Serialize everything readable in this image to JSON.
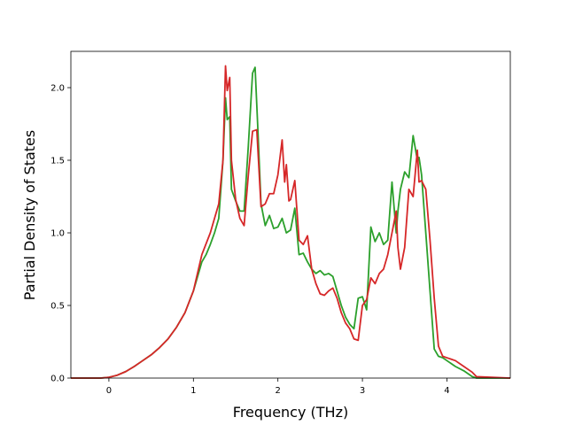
{
  "chart_data": {
    "type": "line",
    "title": "",
    "xlabel": "Frequency (THz)",
    "ylabel": "Partial Density of States",
    "xlim": [
      -0.45,
      4.75
    ],
    "ylim": [
      0,
      2.25
    ],
    "xticks": [
      0,
      1,
      2,
      3,
      4
    ],
    "yticks": [
      0.0,
      0.5,
      1.0,
      1.5,
      2.0
    ],
    "xtick_labels": [
      "0",
      "1",
      "2",
      "3",
      "4"
    ],
    "ytick_labels": [
      "0.0",
      "0.5",
      "1.0",
      "1.5",
      "2.0"
    ],
    "grid": false,
    "legend": "none",
    "series": [
      {
        "color": "#2ca02c",
        "x": [
          -0.45,
          -0.1,
          0.0,
          0.1,
          0.2,
          0.3,
          0.4,
          0.5,
          0.6,
          0.7,
          0.8,
          0.9,
          1.0,
          1.1,
          1.15,
          1.2,
          1.25,
          1.3,
          1.35,
          1.38,
          1.4,
          1.43,
          1.45,
          1.5,
          1.55,
          1.6,
          1.65,
          1.7,
          1.73,
          1.76,
          1.8,
          1.85,
          1.9,
          1.95,
          2.0,
          2.05,
          2.1,
          2.15,
          2.2,
          2.25,
          2.3,
          2.35,
          2.4,
          2.45,
          2.5,
          2.55,
          2.6,
          2.65,
          2.7,
          2.75,
          2.8,
          2.85,
          2.9,
          2.95,
          3.0,
          3.05,
          3.1,
          3.15,
          3.2,
          3.25,
          3.3,
          3.35,
          3.4,
          3.42,
          3.45,
          3.5,
          3.55,
          3.6,
          3.65,
          3.67,
          3.7,
          3.75,
          3.8,
          3.85,
          3.9,
          3.95,
          4.0,
          4.1,
          4.2,
          4.3,
          4.35,
          4.75
        ],
        "y": [
          0.0,
          0.0,
          0.005,
          0.02,
          0.045,
          0.08,
          0.12,
          0.16,
          0.21,
          0.27,
          0.35,
          0.45,
          0.6,
          0.8,
          0.85,
          0.92,
          1.0,
          1.1,
          1.5,
          1.93,
          1.78,
          1.8,
          1.3,
          1.22,
          1.15,
          1.15,
          1.6,
          2.1,
          2.14,
          1.75,
          1.2,
          1.05,
          1.12,
          1.03,
          1.04,
          1.1,
          1.0,
          1.02,
          1.17,
          0.85,
          0.86,
          0.8,
          0.75,
          0.72,
          0.74,
          0.71,
          0.72,
          0.7,
          0.6,
          0.5,
          0.42,
          0.37,
          0.34,
          0.55,
          0.56,
          0.47,
          1.04,
          0.94,
          1.0,
          0.92,
          0.95,
          1.35,
          1.0,
          1.15,
          1.3,
          1.42,
          1.38,
          1.67,
          1.5,
          1.52,
          1.4,
          1.0,
          0.6,
          0.2,
          0.15,
          0.14,
          0.12,
          0.08,
          0.05,
          0.01,
          0.0,
          0.0
        ]
      },
      {
        "color": "#d62728",
        "x": [
          -0.45,
          -0.1,
          0.0,
          0.1,
          0.2,
          0.3,
          0.4,
          0.5,
          0.6,
          0.7,
          0.8,
          0.9,
          1.0,
          1.1,
          1.2,
          1.3,
          1.35,
          1.38,
          1.4,
          1.43,
          1.45,
          1.5,
          1.55,
          1.6,
          1.65,
          1.7,
          1.75,
          1.8,
          1.85,
          1.9,
          1.95,
          2.0,
          2.05,
          2.08,
          2.1,
          2.13,
          2.15,
          2.2,
          2.25,
          2.3,
          2.35,
          2.4,
          2.45,
          2.5,
          2.55,
          2.6,
          2.65,
          2.7,
          2.75,
          2.8,
          2.85,
          2.9,
          2.95,
          3.0,
          3.05,
          3.1,
          3.15,
          3.2,
          3.25,
          3.3,
          3.35,
          3.4,
          3.42,
          3.45,
          3.5,
          3.55,
          3.6,
          3.65,
          3.67,
          3.7,
          3.75,
          3.8,
          3.85,
          3.9,
          3.95,
          4.0,
          4.1,
          4.2,
          4.3,
          4.35,
          4.75
        ],
        "y": [
          0.0,
          0.0,
          0.005,
          0.02,
          0.045,
          0.08,
          0.12,
          0.16,
          0.21,
          0.27,
          0.35,
          0.45,
          0.6,
          0.85,
          1.0,
          1.2,
          1.5,
          2.15,
          1.98,
          2.07,
          1.5,
          1.23,
          1.1,
          1.05,
          1.4,
          1.7,
          1.71,
          1.18,
          1.2,
          1.27,
          1.27,
          1.4,
          1.64,
          1.35,
          1.47,
          1.22,
          1.23,
          1.36,
          0.95,
          0.92,
          0.98,
          0.75,
          0.65,
          0.58,
          0.57,
          0.6,
          0.62,
          0.55,
          0.45,
          0.38,
          0.34,
          0.27,
          0.26,
          0.5,
          0.54,
          0.69,
          0.65,
          0.72,
          0.75,
          0.85,
          1.0,
          1.15,
          0.9,
          0.75,
          0.9,
          1.3,
          1.25,
          1.57,
          1.35,
          1.36,
          1.3,
          0.95,
          0.55,
          0.22,
          0.15,
          0.14,
          0.12,
          0.08,
          0.04,
          0.01,
          0.0
        ]
      }
    ]
  }
}
